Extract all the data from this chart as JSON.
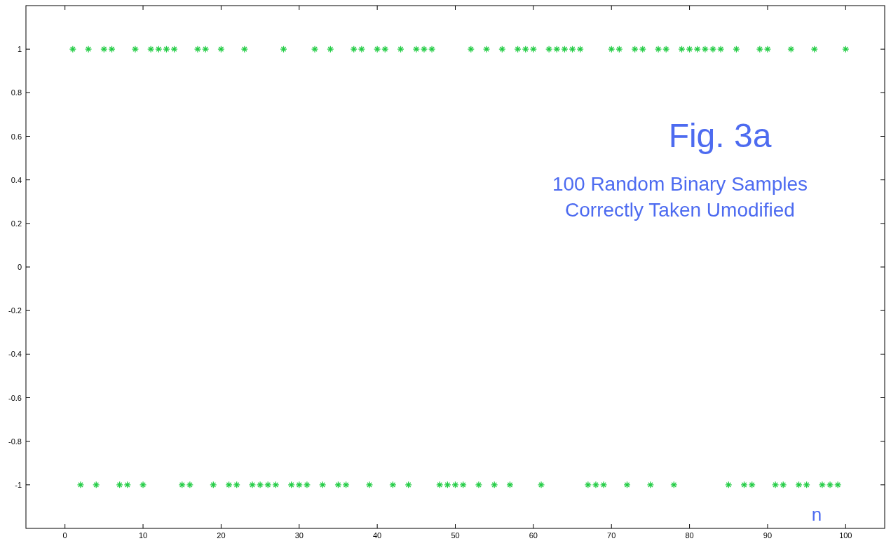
{
  "chart_data": {
    "type": "scatter",
    "title": "Fig. 3a",
    "xlabel": "n",
    "annotations": [
      "100 Random Binary Samples",
      "Correctly Taken Umodified"
    ],
    "x": [
      1,
      2,
      3,
      4,
      5,
      6,
      7,
      8,
      9,
      10,
      11,
      12,
      13,
      14,
      15,
      16,
      17,
      18,
      19,
      20,
      21,
      22,
      23,
      24,
      25,
      26,
      27,
      28,
      29,
      30,
      31,
      32,
      33,
      34,
      35,
      36,
      37,
      38,
      39,
      40,
      41,
      42,
      43,
      44,
      45,
      46,
      47,
      48,
      49,
      50,
      51,
      52,
      53,
      54,
      55,
      56,
      57,
      58,
      59,
      60,
      61,
      62,
      63,
      64,
      65,
      66,
      67,
      68,
      69,
      70,
      71,
      72,
      73,
      74,
      75,
      76,
      77,
      78,
      79,
      80,
      81,
      82,
      83,
      84,
      85,
      86,
      87,
      88,
      89,
      90,
      91,
      92,
      93,
      94,
      95,
      96,
      97,
      98,
      99,
      100
    ],
    "series": [
      {
        "color": "#22cc44",
        "values": [
          1,
          -1,
          1,
          -1,
          1,
          1,
          -1,
          -1,
          1,
          -1,
          1,
          1,
          1,
          1,
          -1,
          -1,
          1,
          1,
          -1,
          1,
          -1,
          -1,
          1,
          -1,
          -1,
          -1,
          -1,
          1,
          -1,
          -1,
          -1,
          1,
          -1,
          1,
          -1,
          -1,
          1,
          1,
          -1,
          1,
          1,
          -1,
          1,
          -1,
          1,
          1,
          1,
          -1,
          -1,
          -1,
          -1,
          1,
          -1,
          1,
          -1,
          1,
          -1,
          1,
          1,
          1,
          -1,
          1,
          1,
          1,
          1,
          1,
          -1,
          -1,
          -1,
          1,
          1,
          -1,
          1,
          1,
          -1,
          1,
          1,
          -1,
          1,
          1,
          1,
          1,
          1,
          1,
          -1,
          1,
          -1,
          -1,
          1,
          1,
          -1,
          -1,
          1,
          -1,
          -1,
          1,
          -1,
          -1,
          -1,
          1
        ]
      }
    ],
    "xlim": [
      -5,
      105
    ],
    "ylim": [
      -1.2,
      1.2
    ],
    "xticks": [
      0,
      10,
      20,
      30,
      40,
      50,
      60,
      70,
      80,
      90,
      100
    ],
    "yticks": [
      -1,
      -0.8,
      -0.6,
      -0.4,
      -0.2,
      0,
      0.2,
      0.4,
      0.6,
      0.8,
      1
    ],
    "grid": false,
    "marker": "cross"
  }
}
